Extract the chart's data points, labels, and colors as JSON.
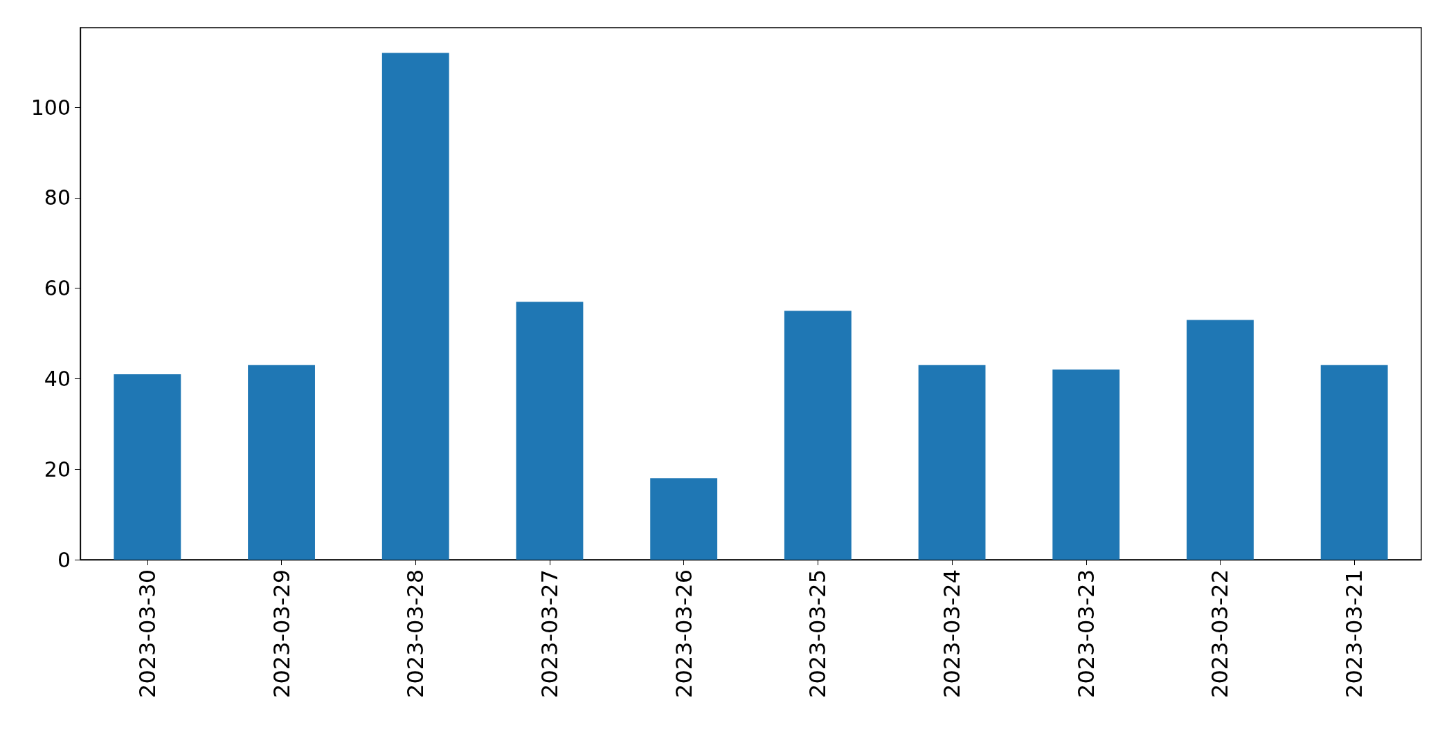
{
  "chart_data": {
    "type": "bar",
    "categories": [
      "2023-03-30",
      "2023-03-29",
      "2023-03-28",
      "2023-03-27",
      "2023-03-26",
      "2023-03-25",
      "2023-03-24",
      "2023-03-23",
      "2023-03-22",
      "2023-03-21"
    ],
    "values": [
      41,
      43,
      112,
      57,
      18,
      55,
      43,
      42,
      53,
      43
    ],
    "color": "#1f77b4",
    "ylim": [
      0,
      117.6
    ],
    "yticks": [
      0,
      20,
      40,
      60,
      80,
      100
    ],
    "grid": false
  }
}
